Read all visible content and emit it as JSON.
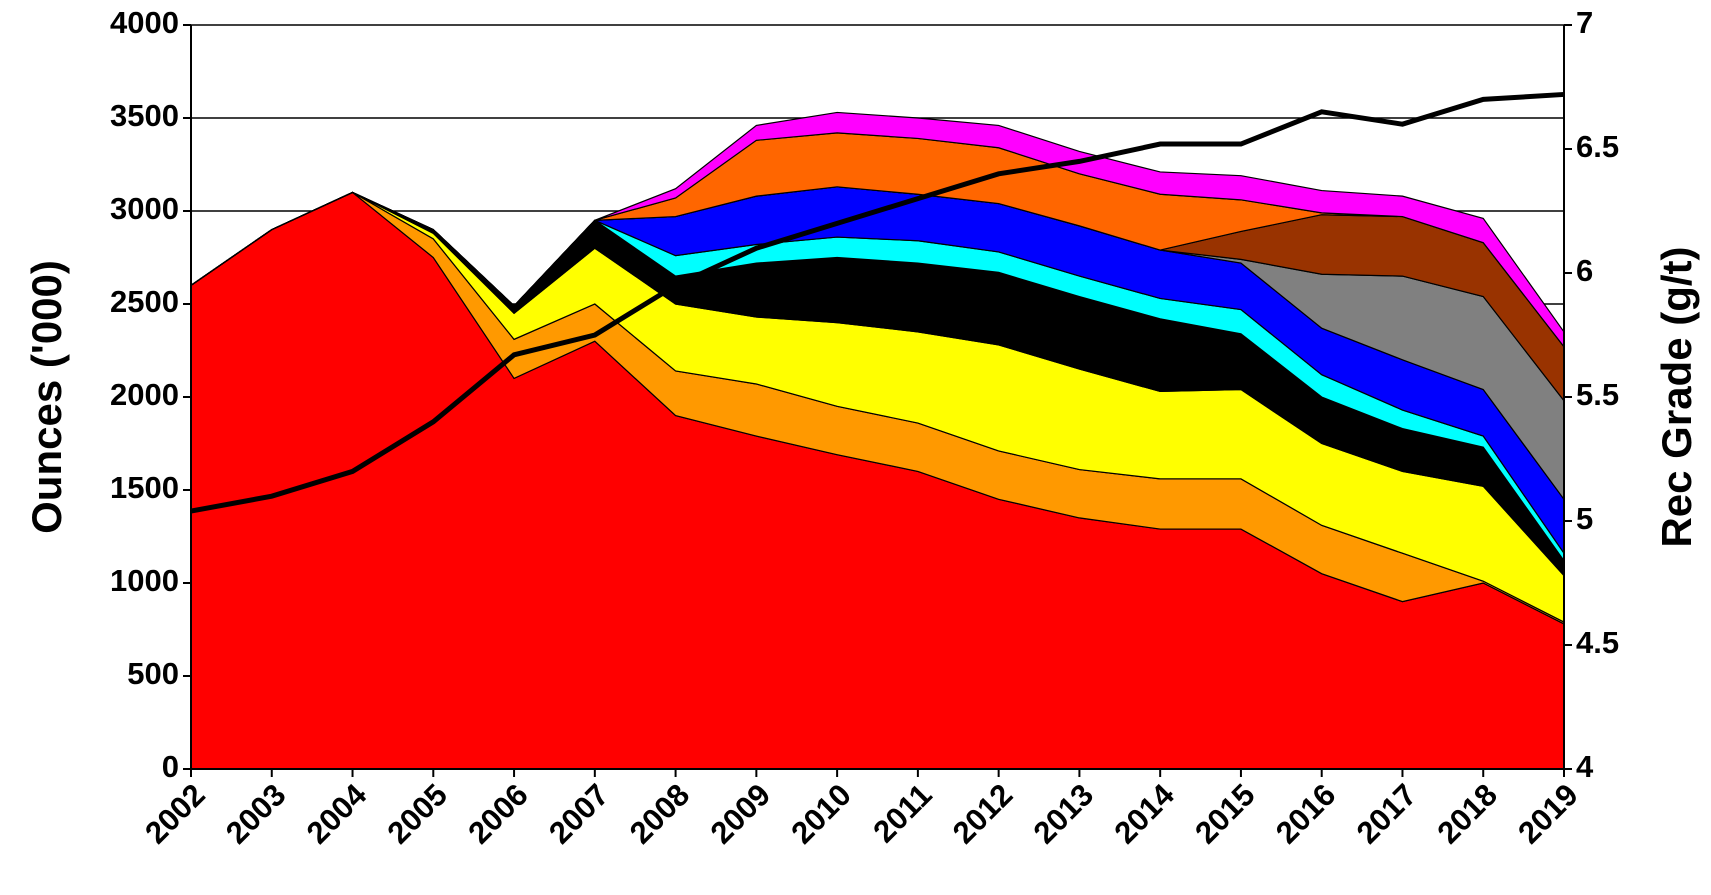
{
  "chart_data": {
    "type": "stacked-area",
    "y_label": "Ounces ('000)",
    "y2_label": "Rec Grade (g/t)",
    "categories": [
      "2002",
      "2003",
      "2004",
      "2005",
      "2006",
      "2007",
      "2008",
      "2009",
      "2010",
      "2011",
      "2012",
      "2013",
      "2014",
      "2015",
      "2016",
      "2017",
      "2018",
      "2019"
    ],
    "ylim": [
      0,
      4000
    ],
    "yticks": [
      0,
      500,
      1000,
      1500,
      2000,
      2500,
      3000,
      3500,
      4000
    ],
    "y2lim": [
      4,
      7
    ],
    "y2ticks": [
      4,
      4.5,
      5,
      5.5,
      6,
      6.5,
      7
    ],
    "grid": true,
    "series": [
      {
        "color": "#ff0000",
        "values": [
          2600,
          2900,
          3100,
          2750,
          2100,
          2300,
          1900,
          1790,
          1690,
          1600,
          1450,
          1350,
          1290,
          1290,
          1050,
          900,
          1000,
          780
        ]
      },
      {
        "color": "#ff9900",
        "values": [
          0,
          0,
          0,
          100,
          210,
          200,
          240,
          280,
          260,
          260,
          260,
          260,
          270,
          270,
          260,
          260,
          10,
          10
        ]
      },
      {
        "color": "#ffff00",
        "values": [
          0,
          0,
          0,
          30,
          140,
          300,
          360,
          360,
          450,
          490,
          570,
          540,
          470,
          480,
          440,
          440,
          510,
          250
        ]
      },
      {
        "color": "#000000",
        "values": [
          0,
          0,
          0,
          20,
          40,
          150,
          150,
          290,
          350,
          370,
          390,
          390,
          390,
          300,
          250,
          230,
          210,
          80
        ]
      },
      {
        "color": "#00ffff",
        "values": [
          0,
          0,
          0,
          0,
          0,
          0,
          110,
          100,
          110,
          120,
          110,
          110,
          110,
          130,
          120,
          100,
          60,
          40
        ]
      },
      {
        "color": "#0000ff",
        "values": [
          0,
          0,
          0,
          0,
          0,
          0,
          210,
          260,
          270,
          250,
          260,
          270,
          260,
          250,
          250,
          270,
          250,
          290
        ]
      },
      {
        "color": "#808080",
        "values": [
          0,
          0,
          0,
          0,
          0,
          0,
          0,
          0,
          0,
          0,
          0,
          0,
          0,
          20,
          290,
          450,
          500,
          530
        ]
      },
      {
        "color": "#993300",
        "values": [
          0,
          0,
          0,
          0,
          0,
          0,
          0,
          0,
          0,
          0,
          0,
          0,
          0,
          150,
          320,
          320,
          290,
          290
        ]
      },
      {
        "color": "#ff6600",
        "values": [
          0,
          0,
          0,
          0,
          0,
          0,
          100,
          300,
          290,
          300,
          300,
          280,
          300,
          170,
          10,
          0,
          0,
          0
        ]
      },
      {
        "color": "#ff00ff",
        "values": [
          0,
          0,
          0,
          0,
          0,
          0,
          50,
          80,
          110,
          110,
          120,
          120,
          120,
          130,
          120,
          110,
          130,
          80
        ]
      },
      {
        "type": "line",
        "axis": "y2",
        "color": "#000000",
        "values": [
          5.04,
          5.1,
          5.2,
          5.4,
          5.67,
          5.75,
          5.95,
          6.1,
          6.2,
          6.3,
          6.4,
          6.45,
          6.52,
          6.52,
          6.65,
          6.6,
          6.7,
          6.72
        ]
      }
    ]
  }
}
